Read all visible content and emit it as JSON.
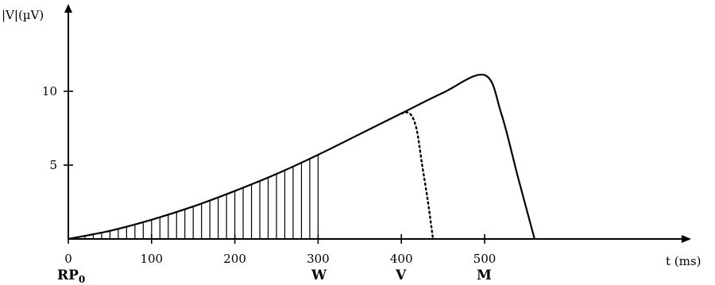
{
  "chart_data": {
    "type": "line",
    "ylabel": "|V|(µV)",
    "xlabel": "t (ms)",
    "xlim": [
      0,
      1230
    ],
    "ylim": [
      0,
      15.5
    ],
    "x_ticks": [
      0,
      100,
      200,
      300,
      400,
      500
    ],
    "y_ticks": [
      5,
      10
    ],
    "x_tick_labels": [
      "0",
      "100",
      "200",
      "300",
      "400",
      "500"
    ],
    "y_tick_labels": [
      "5",
      "10"
    ],
    "series": [
      {
        "style": "solid",
        "x": [
          0,
          50,
          100,
          150,
          200,
          250,
          300,
          350,
          400,
          450,
          500,
          520,
          540,
          560
        ],
        "y": [
          0,
          0.55,
          1.3,
          2.2,
          3.25,
          4.4,
          5.7,
          7.1,
          8.5,
          9.9,
          11.1,
          8.5,
          4.2,
          0
        ]
      },
      {
        "style": "dotted",
        "x": [
          400,
          410,
          418,
          425,
          432,
          438
        ],
        "y": [
          8.5,
          8.5,
          7.5,
          5.0,
          2.5,
          0
        ]
      }
    ],
    "hatched_region": {
      "x_from": 0,
      "x_to": 300,
      "step": 10
    },
    "markers": [
      {
        "label": "RP0",
        "x": 0
      },
      {
        "label": "W",
        "x": 300
      },
      {
        "label": "V",
        "x": 400
      },
      {
        "label": "M",
        "x": 500
      }
    ]
  }
}
